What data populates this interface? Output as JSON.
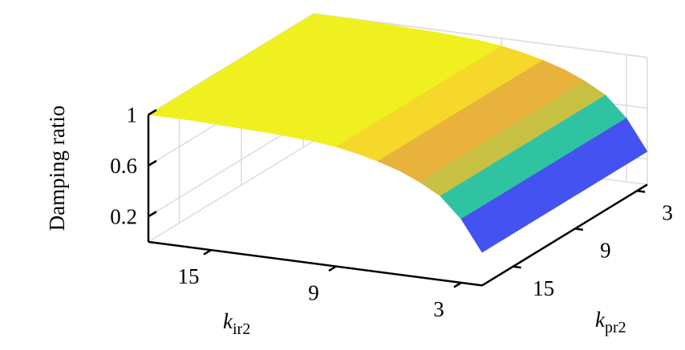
{
  "chart_data": {
    "type": "surface",
    "z_label": "Damping ratio",
    "x_label": {
      "symbol": "k",
      "subscript": "ir2"
    },
    "y_label": {
      "symbol": "k",
      "subscript": "pr2"
    },
    "x": [
      18,
      16,
      14,
      12,
      10,
      9,
      8,
      7,
      6,
      5,
      4,
      3,
      2
    ],
    "z": [
      1.0,
      1.0,
      0.99,
      0.98,
      0.96,
      0.94,
      0.91,
      0.87,
      0.82,
      0.75,
      0.66,
      0.5,
      0.26
    ],
    "xlim": [
      18,
      2
    ],
    "ylim": [
      18,
      2
    ],
    "zlim": [
      0,
      1
    ],
    "xticks": [
      15,
      9,
      3
    ],
    "yticks": [
      15,
      9,
      3
    ],
    "zticks": [
      0.2,
      0.6,
      1
    ],
    "grid": true,
    "colormap": [
      "#3e26a8",
      "#4352f0",
      "#2d8cf9",
      "#1ab2d8",
      "#30c3a2",
      "#81cb6a",
      "#c8c042",
      "#e9b23c",
      "#f5d82a",
      "#f0f020"
    ]
  }
}
